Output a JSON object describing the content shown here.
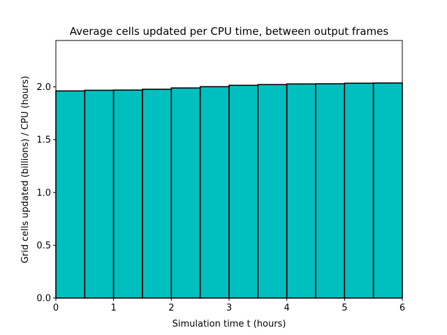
{
  "chart_data": {
    "type": "bar",
    "title": "Average cells updated per CPU time, between output frames",
    "xlabel": "Simulation time t (hours)",
    "ylabel": "Grid cells updated (billions) / CPU (hours)",
    "xlim": [
      0,
      6
    ],
    "ylim": [
      0,
      2.44
    ],
    "xticks": [
      "0",
      "1",
      "2",
      "3",
      "4",
      "5",
      "6"
    ],
    "yticks": [
      "0.0",
      "0.5",
      "1.0",
      "1.5",
      "2.0"
    ],
    "bin_edges": [
      0,
      0.5,
      1.0,
      1.5,
      2.0,
      2.5,
      3.0,
      3.5,
      4.0,
      4.5,
      5.0,
      5.5,
      6.0
    ],
    "values": [
      1.962,
      1.968,
      1.97,
      1.978,
      1.99,
      2.002,
      2.015,
      2.022,
      2.028,
      2.03,
      2.035,
      2.037
    ],
    "bar_color": "#00bfbf",
    "edge_color": "#000000",
    "grid": false,
    "legend": false
  }
}
